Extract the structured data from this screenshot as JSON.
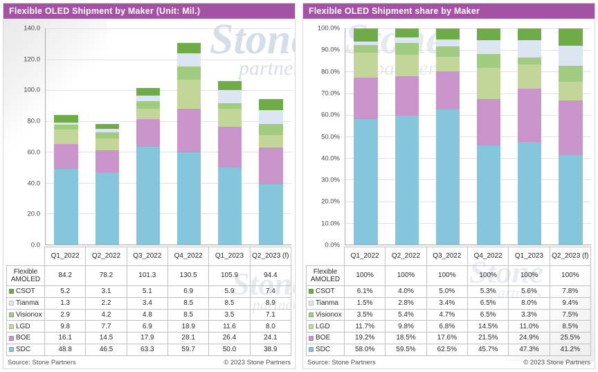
{
  "watermark": {
    "word1": "Stone",
    "word2": "partners"
  },
  "quarters": [
    "Q1_2022",
    "Q2_2022",
    "Q3_2022",
    "Q4_2022",
    "Q1_2023",
    "Q2_2023 (f)"
  ],
  "makers": [
    "CSOT",
    "Tianma",
    "Visionox",
    "LGD",
    "BOE",
    "SDC"
  ],
  "colors": {
    "title_bar": "#A452A4",
    "CSOT": "#6FAC47",
    "Tianma": "#DCE6F2",
    "Visionox": "#A0CB80",
    "LGD": "#C3D69A",
    "BOE": "#C994C9",
    "SDC": "#85C6DC"
  },
  "panels": [
    {
      "title": "Flexible OLED Shipment by Maker (Unit: Mil.)",
      "y_ticks": [
        "0.0",
        "20.0",
        "40.0",
        "60.0",
        "80.0",
        "100.0",
        "120.0",
        "140.0"
      ],
      "y_max": 140,
      "value_suffix": "",
      "total_label": "Flexible AMOLED",
      "totals": [
        "84.2",
        "78.2",
        "101.3",
        "130.5",
        "105.9",
        "94.4"
      ],
      "source": "Source: Stone Partners",
      "copyright": "© 2023 Stone Partners"
    },
    {
      "title": "Flexible OLED Shipment share by Maker",
      "y_ticks": [
        "0.0%",
        "10.0%",
        "20.0%",
        "30.0%",
        "40.0%",
        "50.0%",
        "60.0%",
        "70.0%",
        "80.0%",
        "90.0%",
        "100.0%"
      ],
      "y_max": 100,
      "value_suffix": "%",
      "total_label": "Flexible AMOLED",
      "totals": [
        "100%",
        "100%",
        "100%",
        "100%",
        "100%",
        "100%"
      ],
      "source": "Source: Stone Partners",
      "copyright": "© 2023 Stone Partners"
    }
  ],
  "chart_data": [
    {
      "type": "bar",
      "stacked": true,
      "title": "Flexible OLED Shipment by Maker (Unit: Mil.)",
      "categories": [
        "Q1_2022",
        "Q2_2022",
        "Q3_2022",
        "Q4_2022",
        "Q1_2023",
        "Q2_2023 (f)"
      ],
      "series": [
        {
          "name": "CSOT",
          "values": [
            5.2,
            3.1,
            5.1,
            6.9,
            5.9,
            7.4
          ]
        },
        {
          "name": "Tianma",
          "values": [
            1.3,
            2.2,
            3.4,
            8.5,
            8.5,
            8.9
          ]
        },
        {
          "name": "Visionox",
          "values": [
            2.9,
            4.2,
            4.8,
            8.5,
            3.5,
            7.1
          ]
        },
        {
          "name": "LGD",
          "values": [
            9.8,
            7.7,
            6.9,
            18.9,
            11.6,
            8.0
          ]
        },
        {
          "name": "BOE",
          "values": [
            16.1,
            14.5,
            17.9,
            28.1,
            26.4,
            24.1
          ]
        },
        {
          "name": "SDC",
          "values": [
            48.8,
            46.5,
            63.3,
            59.7,
            50.0,
            38.9
          ]
        }
      ],
      "totals": [
        84.2,
        78.2,
        101.3,
        130.5,
        105.9,
        94.4
      ],
      "stack_order_bottom_to_top": [
        "SDC",
        "BOE",
        "LGD",
        "Visionox",
        "Tianma",
        "CSOT"
      ],
      "ylabel": "",
      "ylim": [
        0,
        140
      ],
      "y_tick_step": 20,
      "grid": true,
      "legend_position": "table-first-column"
    },
    {
      "type": "bar",
      "stacked": true,
      "stacked_100pct": true,
      "title": "Flexible OLED Shipment share by Maker",
      "categories": [
        "Q1_2022",
        "Q2_2022",
        "Q3_2022",
        "Q4_2022",
        "Q1_2023",
        "Q2_2023 (f)"
      ],
      "series": [
        {
          "name": "CSOT",
          "values": [
            6.1,
            4.0,
            5.0,
            5.3,
            5.6,
            7.8
          ]
        },
        {
          "name": "Tianma",
          "values": [
            1.5,
            2.8,
            3.4,
            6.5,
            8.0,
            9.4
          ]
        },
        {
          "name": "Visionox",
          "values": [
            3.5,
            5.4,
            4.7,
            6.5,
            3.3,
            7.5
          ]
        },
        {
          "name": "LGD",
          "values": [
            11.7,
            9.8,
            6.8,
            14.5,
            11.0,
            8.5
          ]
        },
        {
          "name": "BOE",
          "values": [
            19.2,
            18.5,
            17.6,
            21.5,
            24.9,
            25.5
          ]
        },
        {
          "name": "SDC",
          "values": [
            58.0,
            59.5,
            62.5,
            45.7,
            47.3,
            41.2
          ]
        }
      ],
      "totals": [
        "100%",
        "100%",
        "100%",
        "100%",
        "100%",
        "100%"
      ],
      "stack_order_bottom_to_top": [
        "SDC",
        "BOE",
        "LGD",
        "Visionox",
        "Tianma",
        "CSOT"
      ],
      "ylabel": "",
      "ylim": [
        0,
        100
      ],
      "y_tick_step": 10,
      "grid": true,
      "legend_position": "table-first-column"
    }
  ]
}
